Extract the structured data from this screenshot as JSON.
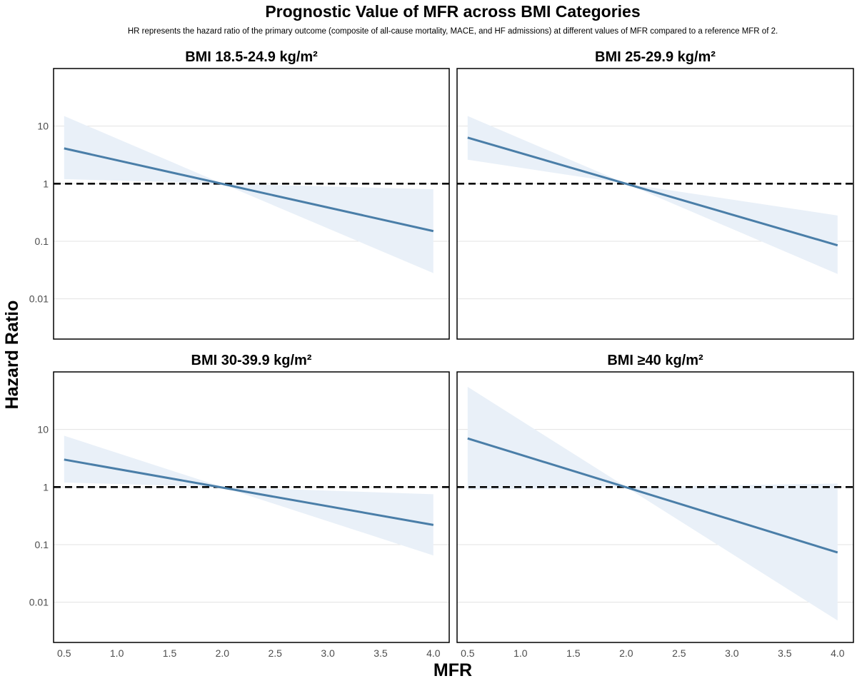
{
  "title": "Prognostic Value of MFR across BMI Categories",
  "subtitle": "HR represents the hazard ratio of the primary outcome (composite of all-cause mortality, MACE, and HF admissions) at different values of MFR compared to a reference MFR of 2.",
  "colors": {
    "line": "#4a7ea8",
    "band": "#e9f0f8",
    "reference": "#000000",
    "grid": "#e3e3e3",
    "frame": "#000000"
  },
  "chart_data": {
    "type": "line",
    "xlabel": "MFR",
    "ylabel": "Hazard Ratio",
    "y_scale": "log10",
    "xlim": [
      0.4,
      4.15
    ],
    "ylim": [
      0.002,
      100
    ],
    "x_ticks": [
      0.5,
      1.0,
      1.5,
      2.0,
      2.5,
      3.0,
      3.5,
      4.0
    ],
    "x_tick_labels": [
      "0.5",
      "1.0",
      "1.5",
      "2.0",
      "2.5",
      "3.0",
      "3.5",
      "4.0"
    ],
    "y_ticks": [
      0.01,
      0.1,
      1,
      10
    ],
    "y_tick_labels": [
      "0.01",
      "0.1",
      "1",
      "10"
    ],
    "reference_line": 1,
    "reference_x": 2.0,
    "panels": [
      {
        "title": "BMI 18.5-24.9 kg/m²",
        "x": [
          0.5,
          4.0
        ],
        "hr": [
          4.1,
          0.15
        ],
        "ci_lower": [
          1.2,
          0.028
        ],
        "ci_upper": [
          15,
          0.8
        ]
      },
      {
        "title": "BMI 25-29.9 kg/m²",
        "x": [
          0.5,
          4.0
        ],
        "hr": [
          6.3,
          0.085
        ],
        "ci_lower": [
          2.6,
          0.027
        ],
        "ci_upper": [
          15,
          0.28
        ]
      },
      {
        "title": "BMI 30-39.9 kg/m²",
        "x": [
          0.5,
          4.0
        ],
        "hr": [
          3.0,
          0.22
        ],
        "ci_lower": [
          1.2,
          0.065
        ],
        "ci_upper": [
          7.8,
          0.75
        ]
      },
      {
        "title": "BMI ≥40 kg/m²",
        "x": [
          0.5,
          4.0
        ],
        "hr": [
          7.0,
          0.073
        ],
        "ci_lower": [
          0.9,
          0.0048
        ],
        "ci_upper": [
          55,
          1.15
        ]
      }
    ]
  }
}
